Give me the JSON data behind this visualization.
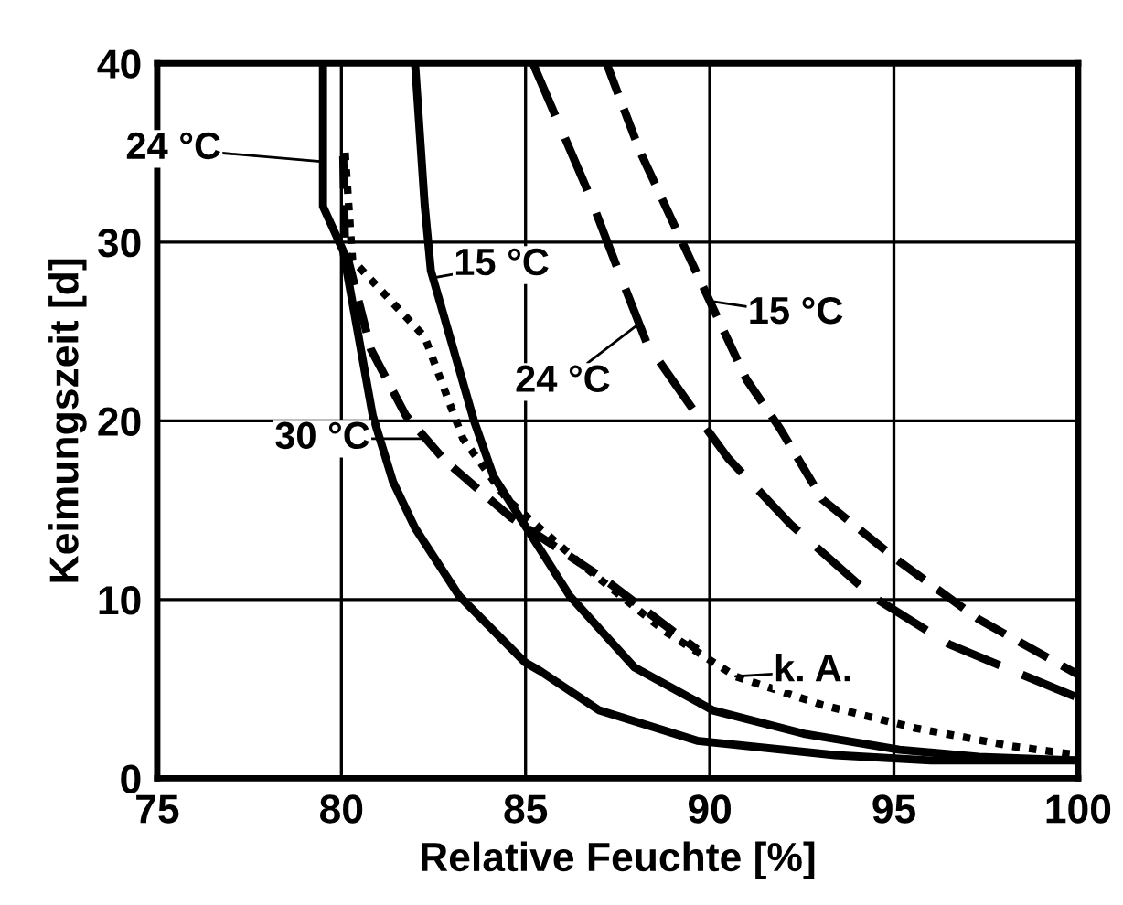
{
  "chart_data": {
    "type": "line",
    "xlabel": "Relative Feuchte [%]",
    "ylabel": "Keimungszeit [d]",
    "xlim": [
      75,
      100
    ],
    "ylim": [
      0,
      40
    ],
    "xticks": [
      75,
      80,
      85,
      90,
      95,
      100
    ],
    "yticks": [
      0,
      10,
      20,
      30,
      40
    ],
    "grid": true,
    "legend": false,
    "marker": "none",
    "series": [
      {
        "color": "#000000",
        "line_style": "solid",
        "x": [
          79.5,
          79.5,
          80.05,
          80.85,
          81.4,
          82.0,
          83.2,
          84.98,
          85.4,
          87.0,
          89.66,
          93.4,
          96,
          100
        ],
        "values": [
          40,
          32,
          29.5,
          20.3,
          16.6,
          14,
          10.2,
          6.5,
          6.0,
          3.8,
          2.1,
          1.3,
          1.0,
          1.0
        ]
      },
      {
        "color": "#000000",
        "line_style": "solid",
        "x": [
          82.0,
          82.26,
          82.43,
          83.6,
          84.13,
          85.15,
          86.2,
          87.96,
          90.09,
          92.55,
          95.15,
          97.3,
          100
        ],
        "values": [
          40,
          32.1,
          28.4,
          20,
          16.9,
          13.6,
          10.2,
          6.2,
          3.8,
          2.5,
          1.6,
          1.2,
          1.0
        ]
      },
      {
        "color": "#000000",
        "line_style": "dashed",
        "x": [
          80.05,
          80.1,
          80.8,
          81.75,
          82.8,
          84.6,
          87.1,
          89.66
        ],
        "values": [
          34.8,
          29.7,
          24,
          20.3,
          17.8,
          14.6,
          11.2,
          7.2
        ]
      },
      {
        "color": "#000000",
        "line_style": "dotted",
        "x": [
          80.1,
          80.3,
          82.26,
          83.3,
          84.5,
          86.5,
          88.8,
          90.7,
          93.06,
          95.6,
          98.2,
          100
        ],
        "values": [
          35,
          29,
          24.7,
          19,
          15.6,
          12,
          8.2,
          5.7,
          4.1,
          2.8,
          1.8,
          1.3
        ]
      },
      {
        "color": "#000000",
        "line_style": "dashed",
        "x": [
          85.2,
          86.7,
          87.5,
          88.3,
          89.9,
          90.5,
          92.2,
          94.4,
          96.5,
          100
        ],
        "values": [
          40,
          32.8,
          28.5,
          24.3,
          19.6,
          17.9,
          14.2,
          10.2,
          7.5,
          4.5
        ]
      },
      {
        "color": "#000000",
        "line_style": "dashed",
        "x": [
          87.2,
          88.1,
          90.0,
          91.0,
          91.9,
          93.06,
          95.1,
          97.3,
          100
        ],
        "values": [
          40,
          35.1,
          26.7,
          22.3,
          19.6,
          15.6,
          12.2,
          8.9,
          5.8
        ]
      }
    ],
    "annotations": [
      {
        "text": "24 °C",
        "x": 79.5,
        "y": 34.5
      },
      {
        "text": "15 °C",
        "x": 82.5,
        "y": 28.0
      },
      {
        "text": "30 °C",
        "x": 82.3,
        "y": 19.0
      },
      {
        "text": "k. A.",
        "x": 90.7,
        "y": 5.7
      },
      {
        "text": "24 °C",
        "x": 88.0,
        "y": 25.3
      },
      {
        "text": "15 °C",
        "x": 90.0,
        "y": 26.7
      }
    ]
  }
}
